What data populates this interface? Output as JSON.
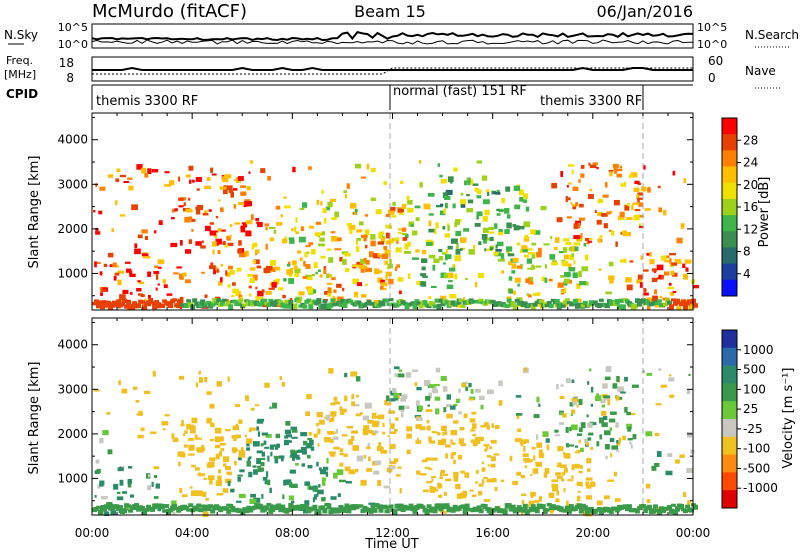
{
  "header": {
    "station": "McMurdo (fitACF)",
    "beam": "Beam 15",
    "date": "06/Jan/2016"
  },
  "strips": {
    "nsky_label": "N.Sky",
    "nsky_ticks": [
      "10^5",
      "10^0"
    ],
    "nsearch_label": "N.Search",
    "nsearch_ticks": [
      "10^5",
      "10^0"
    ],
    "freq_label": "Freq.",
    "freq_unit": "[MHz]",
    "freq_ticks": [
      "18",
      "8"
    ],
    "nave_label": "Nave",
    "nave_ticks": [
      "60",
      "0"
    ],
    "cpid_label": "CPID",
    "cpid_segments": [
      "themis 3300 RF",
      "normal (fast) 151 RF",
      "themis 3300 RF"
    ]
  },
  "axes": {
    "x_label": "Time UT",
    "x_ticks": [
      "00:00",
      "04:00",
      "08:00",
      "12:00",
      "16:00",
      "20:00",
      "00:00"
    ],
    "y_label": "Slant Range [km]",
    "y_ticks": [
      "1000",
      "2000",
      "3000",
      "4000"
    ]
  },
  "colorbars": {
    "power": {
      "label": "Power [dB]",
      "ticks": [
        "28",
        "24",
        "20",
        "16",
        "12",
        "8",
        "4"
      ],
      "colors": [
        "#ff0000",
        "#e84000",
        "#ff7f00",
        "#ffbf00",
        "#f0e000",
        "#9ed11c",
        "#3db54a",
        "#3a8f50",
        "#2a6a6a",
        "#1a3f9f",
        "#0a10ff"
      ]
    },
    "velocity": {
      "label": "Velocity [m s⁻¹]",
      "ticks": [
        "1000",
        "500",
        "100",
        "25",
        "-25",
        "-100",
        "-500",
        "-1000"
      ],
      "colors": [
        "#1f2f9f",
        "#2a6aaa",
        "#2a8a6a",
        "#3a9a4a",
        "#6ac83a",
        "#c8c8c0",
        "#f0c020",
        "#ff8a10",
        "#ff4a00",
        "#e00000"
      ]
    }
  },
  "chart_data": [
    {
      "type": "heatmap",
      "title": "Power",
      "xlabel": "Time UT",
      "ylabel": "Slant Range [km]",
      "xlim": [
        "00:00",
        "24:00"
      ],
      "ylim": [
        180,
        4600
      ],
      "colorbar": {
        "label": "Power [dB]",
        "range": [
          0,
          32
        ]
      },
      "scatter_blobs": [
        {
          "t_h": 0.8,
          "range_km": 450,
          "db": 30
        },
        {
          "t_h": 2.5,
          "range_km": 400,
          "db": 29
        },
        {
          "t_h": 5.0,
          "range_km": 2400,
          "db": 28
        },
        {
          "t_h": 6.0,
          "range_km": 1100,
          "db": 25
        },
        {
          "t_h": 7.5,
          "range_km": 1500,
          "db": 18
        },
        {
          "t_h": 9.5,
          "range_km": 1800,
          "db": 20
        },
        {
          "t_h": 10.8,
          "range_km": 1300,
          "db": 24
        },
        {
          "t_h": 11.5,
          "range_km": 1700,
          "db": 22
        },
        {
          "t_h": 13.5,
          "range_km": 1800,
          "db": 16
        },
        {
          "t_h": 15.5,
          "range_km": 2300,
          "db": 14
        },
        {
          "t_h": 18.0,
          "range_km": 1100,
          "db": 18
        },
        {
          "t_h": 20.5,
          "range_km": 2600,
          "db": 25
        },
        {
          "t_h": 23.5,
          "range_km": 600,
          "db": 26
        }
      ]
    },
    {
      "type": "heatmap",
      "title": "Velocity",
      "xlabel": "Time UT",
      "ylabel": "Slant Range [km]",
      "xlim": [
        "00:00",
        "24:00"
      ],
      "ylim": [
        180,
        4600
      ],
      "colorbar": {
        "label": "Velocity [m s⁻¹]",
        "range": [
          -1000,
          1000
        ]
      },
      "scatter_blobs": [
        {
          "t_h": 1.0,
          "range_km": 400,
          "vel": 60
        },
        {
          "t_h": 5.0,
          "range_km": 1500,
          "vel": -300
        },
        {
          "t_h": 6.5,
          "range_km": 1300,
          "vel": 150
        },
        {
          "t_h": 8.0,
          "range_km": 1200,
          "vel": 150
        },
        {
          "t_h": 10.5,
          "range_km": 2000,
          "vel": -200
        },
        {
          "t_h": 13.5,
          "range_km": 3300,
          "vel": 0
        },
        {
          "t_h": 14.5,
          "range_km": 1500,
          "vel": -250
        },
        {
          "t_h": 18.5,
          "range_km": 1000,
          "vel": -300
        },
        {
          "t_h": 20.0,
          "range_km": 2400,
          "vel": 0
        }
      ]
    }
  ]
}
